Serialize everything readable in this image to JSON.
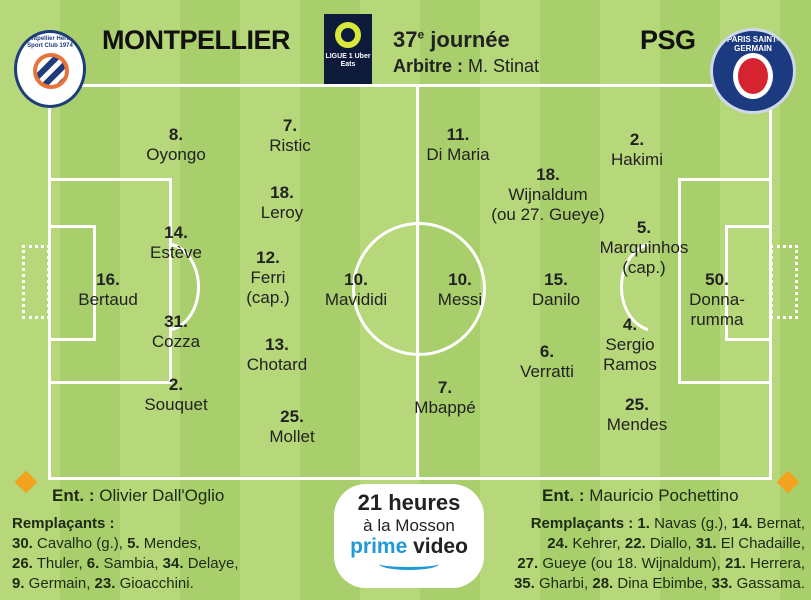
{
  "header": {
    "home": "MONTPELLIER",
    "away": "PSG",
    "matchday": "37e journée",
    "matchday_num": "37",
    "matchday_sup": "e",
    "matchday_word": " journée",
    "referee_label": "Arbitre :",
    "referee": "M. Stinat",
    "league_logo_text": "LIGUE 1 Uber Eats",
    "home_crest_text": "Montpellier Hérault Sport Club 1974",
    "away_crest_text": "PARIS SAINT-GERMAIN"
  },
  "colors": {
    "pitch": "#b0d474",
    "lines": "#ffffff",
    "montpellier_orange": "#e8733a",
    "montpellier_blue": "#1e3d7a",
    "psg_blue": "#1b3a80",
    "psg_red": "#d5232f",
    "prime_blue": "#1f9ad6"
  },
  "home_players": [
    {
      "num": "8.",
      "name": "Oyongo"
    },
    {
      "num": "7.",
      "name": "Ristic"
    },
    {
      "num": "18.",
      "name": "Leroy"
    },
    {
      "num": "14.",
      "name": "Estève"
    },
    {
      "num": "12.",
      "name": "Ferri",
      "extra": "(cap.)"
    },
    {
      "num": "16.",
      "name": "Bertaud"
    },
    {
      "num": "10.",
      "name": "Mavididi"
    },
    {
      "num": "31.",
      "name": "Cozza"
    },
    {
      "num": "13.",
      "name": "Chotard"
    },
    {
      "num": "2.",
      "name": "Souquet"
    },
    {
      "num": "25.",
      "name": "Mollet"
    }
  ],
  "away_players": [
    {
      "num": "11.",
      "name": "Di Maria"
    },
    {
      "num": "2.",
      "name": "Hakimi"
    },
    {
      "num": "18.",
      "name": "Wijnaldum",
      "extra": "(ou 27. Gueye)"
    },
    {
      "num": "5.",
      "name": "Marquinhos",
      "extra": "(cap.)"
    },
    {
      "num": "10.",
      "name": "Messi"
    },
    {
      "num": "15.",
      "name": "Danilo"
    },
    {
      "num": "50.",
      "name": "Donna-",
      "extra": "rumma"
    },
    {
      "num": "4.",
      "name": "Sergio",
      "extra": "Ramos"
    },
    {
      "num": "6.",
      "name": "Verratti"
    },
    {
      "num": "7.",
      "name": "Mbappé"
    },
    {
      "num": "25.",
      "name": "Mendes"
    }
  ],
  "home_coach": {
    "label": "Ent. :",
    "name": "Olivier Dall'Oglio"
  },
  "away_coach": {
    "label": "Ent. :",
    "name": "Mauricio Pochettino"
  },
  "home_subs": {
    "label": "Remplaçants :",
    "items": [
      {
        "n": "30.",
        "p": " Cavalho (g.), "
      },
      {
        "n": "5.",
        "p": " Mendes,"
      },
      {
        "n": "26.",
        "p": " Thuler, "
      },
      {
        "n": "6.",
        "p": " Sambia, "
      },
      {
        "n": "34.",
        "p": " Delaye,"
      },
      {
        "n": "9.",
        "p": " Germain, "
      },
      {
        "n": "23.",
        "p": " Gioacchini."
      }
    ]
  },
  "away_subs": {
    "label": "Remplaçants :",
    "items": [
      {
        "n": "1.",
        "p": " Navas (g.), "
      },
      {
        "n": "14.",
        "p": " Bernat,"
      },
      {
        "n": "24.",
        "p": " Kehrer, "
      },
      {
        "n": "22.",
        "p": " Diallo, "
      },
      {
        "n": "31.",
        "p": " El Chadaille,"
      },
      {
        "n": "27.",
        "p": " Gueye (ou 18. Wijnaldum), "
      },
      {
        "n": "21.",
        "p": " Herrera,"
      },
      {
        "n": "35.",
        "p": " Gharbi, "
      },
      {
        "n": "28.",
        "p": " Dina Ebimbe, "
      },
      {
        "n": "33.",
        "p": " Gassama."
      }
    ]
  },
  "broadcast": {
    "time": "21 heures",
    "venue": "à la Mosson",
    "channel_a": "prime",
    "channel_b": " video"
  }
}
